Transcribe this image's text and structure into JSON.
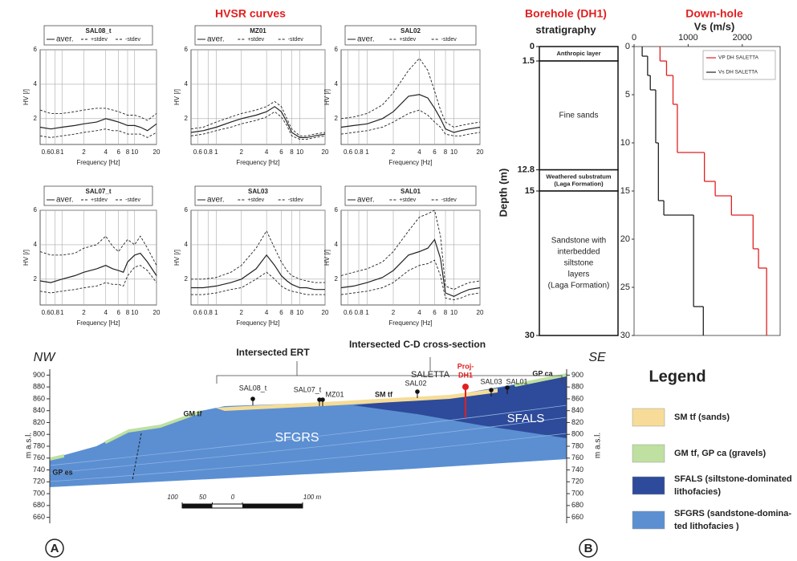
{
  "figure": {
    "heading": "HVSR curves",
    "panel_labels": [
      "A",
      "B"
    ]
  },
  "chart_data": [
    {
      "type": "line",
      "title": "SAL08_t",
      "log_x": true,
      "grid": true,
      "xlabel": "Frequency [Hz]",
      "ylabel": "HV [/]",
      "xlim": [
        0.5,
        20
      ],
      "xticks": [
        0.6,
        0.8,
        1,
        2,
        4,
        6,
        8,
        10,
        20
      ],
      "ylim": [
        0.5,
        6
      ],
      "yticks": [
        2,
        4,
        6
      ],
      "x": [
        0.5,
        0.7,
        1,
        1.5,
        2,
        3,
        4,
        5,
        6,
        7,
        8,
        10,
        12,
        15,
        20
      ],
      "series": [
        {
          "name": "aver.",
          "color": "#222222",
          "style": "solid",
          "values": [
            1.5,
            1.4,
            1.5,
            1.6,
            1.7,
            1.8,
            2.0,
            1.9,
            1.8,
            1.7,
            1.6,
            1.6,
            1.5,
            1.3,
            1.7
          ]
        },
        {
          "name": "+stdev",
          "color": "#222222",
          "style": "dashed",
          "values": [
            2.5,
            2.3,
            2.3,
            2.4,
            2.5,
            2.6,
            2.6,
            2.5,
            2.4,
            2.3,
            2.2,
            2.2,
            2.1,
            1.9,
            2.3
          ]
        },
        {
          "name": "-stdev",
          "color": "#222222",
          "style": "dashed",
          "values": [
            1.0,
            0.9,
            1.0,
            1.1,
            1.2,
            1.3,
            1.4,
            1.3,
            1.3,
            1.2,
            1.1,
            1.1,
            1.1,
            0.9,
            1.2
          ]
        }
      ]
    },
    {
      "type": "line",
      "title": "MZ01",
      "log_x": true,
      "grid": true,
      "xlabel": "Frequency [Hz]",
      "ylabel": "HV [/]",
      "xlim": [
        0.5,
        20
      ],
      "xticks": [
        0.6,
        0.8,
        1,
        2,
        4,
        6,
        8,
        10,
        20
      ],
      "ylim": [
        0.5,
        6
      ],
      "yticks": [
        2,
        4,
        6
      ],
      "x": [
        0.5,
        0.7,
        1,
        1.5,
        2,
        3,
        4,
        5,
        6,
        7,
        8,
        10,
        12,
        15,
        20
      ],
      "series": [
        {
          "name": "aver.",
          "color": "#222222",
          "style": "solid",
          "values": [
            1.2,
            1.3,
            1.5,
            1.8,
            2.0,
            2.2,
            2.4,
            2.7,
            2.4,
            1.8,
            1.2,
            0.9,
            0.9,
            1.0,
            1.1
          ]
        },
        {
          "name": "+stdev",
          "color": "#222222",
          "style": "dashed",
          "values": [
            1.4,
            1.5,
            1.8,
            2.1,
            2.3,
            2.5,
            2.7,
            3.0,
            2.7,
            2.0,
            1.4,
            1.0,
            1.0,
            1.1,
            1.2
          ]
        },
        {
          "name": "-stdev",
          "color": "#222222",
          "style": "dashed",
          "values": [
            1.0,
            1.1,
            1.3,
            1.5,
            1.7,
            1.9,
            2.1,
            2.4,
            2.1,
            1.6,
            1.0,
            0.8,
            0.8,
            0.9,
            1.0
          ]
        }
      ]
    },
    {
      "type": "line",
      "title": "SAL02",
      "log_x": true,
      "grid": true,
      "xlabel": "Frequency [Hz]",
      "ylabel": "HV [/]",
      "xlim": [
        0.5,
        20
      ],
      "xticks": [
        0.6,
        0.8,
        1,
        2,
        4,
        6,
        8,
        10,
        20
      ],
      "ylim": [
        0.5,
        6
      ],
      "yticks": [
        2,
        4,
        6
      ],
      "x": [
        0.5,
        0.7,
        1,
        1.5,
        2,
        3,
        4,
        5,
        6,
        7,
        8,
        10,
        12,
        15,
        20
      ],
      "series": [
        {
          "name": "aver.",
          "color": "#222222",
          "style": "solid",
          "values": [
            1.5,
            1.6,
            1.7,
            2.0,
            2.4,
            3.3,
            3.4,
            3.2,
            2.6,
            2.0,
            1.4,
            1.2,
            1.3,
            1.4,
            1.5
          ]
        },
        {
          "name": "+stdev",
          "color": "#222222",
          "style": "dashed",
          "values": [
            2.0,
            2.1,
            2.3,
            2.8,
            3.5,
            4.8,
            5.5,
            4.8,
            3.6,
            2.5,
            1.8,
            1.5,
            1.6,
            1.7,
            1.8
          ]
        },
        {
          "name": "-stdev",
          "color": "#222222",
          "style": "dashed",
          "values": [
            1.1,
            1.2,
            1.3,
            1.5,
            1.8,
            2.3,
            2.5,
            2.2,
            1.8,
            1.5,
            1.1,
            1.0,
            1.0,
            1.1,
            1.2
          ]
        }
      ]
    },
    {
      "type": "line",
      "title": "SAL07_t",
      "log_x": true,
      "grid": true,
      "xlabel": "Frequency [Hz]",
      "ylabel": "HV [/]",
      "xlim": [
        0.5,
        20
      ],
      "xticks": [
        0.6,
        0.8,
        1,
        2,
        4,
        6,
        8,
        10,
        20
      ],
      "ylim": [
        0.5,
        6
      ],
      "yticks": [
        2,
        4,
        6
      ],
      "x": [
        0.5,
        0.7,
        1,
        1.5,
        2,
        3,
        4,
        5,
        6,
        7,
        8,
        10,
        12,
        15,
        20
      ],
      "series": [
        {
          "name": "aver.",
          "color": "#222222",
          "style": "solid",
          "values": [
            1.9,
            1.8,
            2.0,
            2.2,
            2.4,
            2.6,
            2.8,
            2.6,
            2.5,
            2.4,
            3.0,
            3.4,
            3.5,
            3.0,
            2.2
          ]
        },
        {
          "name": "+stdev",
          "color": "#222222",
          "style": "dashed",
          "values": [
            3.6,
            3.4,
            3.4,
            3.5,
            3.8,
            4.0,
            4.5,
            3.9,
            3.6,
            4.0,
            4.3,
            4.0,
            4.5,
            3.8,
            2.8
          ]
        },
        {
          "name": "-stdev",
          "color": "#222222",
          "style": "dashed",
          "values": [
            1.3,
            1.2,
            1.3,
            1.4,
            1.5,
            1.6,
            1.8,
            1.7,
            1.7,
            1.6,
            2.2,
            2.7,
            2.8,
            2.5,
            1.8
          ]
        }
      ]
    },
    {
      "type": "line",
      "title": "SAL03",
      "log_x": true,
      "grid": true,
      "xlabel": "Frequency [Hz]",
      "ylabel": "HV [/]",
      "xlim": [
        0.5,
        20
      ],
      "xticks": [
        0.6,
        0.8,
        1,
        2,
        4,
        6,
        8,
        10,
        20
      ],
      "ylim": [
        0.5,
        6
      ],
      "yticks": [
        2,
        4,
        6
      ],
      "x": [
        0.5,
        0.7,
        1,
        1.5,
        2,
        3,
        4,
        5,
        6,
        7,
        8,
        10,
        12,
        15,
        20
      ],
      "series": [
        {
          "name": "aver.",
          "color": "#222222",
          "style": "solid",
          "values": [
            1.5,
            1.5,
            1.6,
            1.8,
            2.0,
            2.6,
            3.4,
            2.8,
            2.2,
            1.9,
            1.7,
            1.5,
            1.5,
            1.4,
            1.4
          ]
        },
        {
          "name": "+stdev",
          "color": "#222222",
          "style": "dashed",
          "values": [
            2.0,
            2.0,
            2.1,
            2.4,
            2.8,
            3.8,
            4.8,
            3.8,
            3.0,
            2.5,
            2.2,
            2.0,
            1.9,
            1.8,
            1.8
          ]
        },
        {
          "name": "-stdev",
          "color": "#222222",
          "style": "dashed",
          "values": [
            1.1,
            1.1,
            1.2,
            1.4,
            1.5,
            2.0,
            2.4,
            2.0,
            1.6,
            1.4,
            1.3,
            1.2,
            1.1,
            1.1,
            1.1
          ]
        }
      ]
    },
    {
      "type": "line",
      "title": "SAL01",
      "log_x": true,
      "grid": true,
      "xlabel": "Frequency [Hz]",
      "ylabel": "HV [/]",
      "xlim": [
        0.5,
        20
      ],
      "xticks": [
        0.6,
        0.8,
        1,
        2,
        4,
        6,
        8,
        10,
        20
      ],
      "ylim": [
        0.5,
        6
      ],
      "yticks": [
        2,
        4,
        6
      ],
      "x": [
        0.5,
        0.7,
        1,
        1.5,
        2,
        3,
        4,
        5,
        6,
        7,
        8,
        10,
        12,
        15,
        20
      ],
      "series": [
        {
          "name": "aver.",
          "color": "#222222",
          "style": "solid",
          "values": [
            1.5,
            1.6,
            1.8,
            2.1,
            2.5,
            3.4,
            3.6,
            3.8,
            4.3,
            3.2,
            1.2,
            1.0,
            1.2,
            1.4,
            1.5
          ]
        },
        {
          "name": "+stdev",
          "color": "#222222",
          "style": "dashed",
          "values": [
            2.2,
            2.4,
            2.6,
            3.0,
            3.6,
            4.8,
            5.6,
            5.8,
            6.0,
            4.5,
            1.6,
            1.4,
            1.6,
            1.8,
            1.9
          ]
        },
        {
          "name": "-stdev",
          "color": "#222222",
          "style": "dashed",
          "values": [
            1.1,
            1.2,
            1.3,
            1.5,
            1.8,
            2.5,
            2.8,
            2.9,
            3.1,
            2.2,
            0.9,
            0.8,
            0.9,
            1.1,
            1.2
          ]
        }
      ]
    },
    {
      "type": "strat",
      "title": "Borehole (DH1)",
      "subtitle": "stratigraphy",
      "ylabel": "Depth (m)",
      "ylim": [
        0,
        30
      ],
      "yticks": [
        0,
        1.5,
        12.8,
        15,
        30
      ],
      "layers": [
        {
          "top": 0,
          "bottom": 1.5,
          "label": [
            "Anthropic layer"
          ]
        },
        {
          "top": 1.5,
          "bottom": 12.8,
          "label": [
            "Fine sands"
          ]
        },
        {
          "top": 12.8,
          "bottom": 15,
          "label": [
            "Weathered substratum",
            "(Laga Formation)"
          ]
        },
        {
          "top": 15,
          "bottom": 30,
          "label": [
            "Sandstone with",
            "interbedded",
            "siltstone",
            "layers",
            "(Laga Formation)"
          ]
        }
      ]
    },
    {
      "type": "step",
      "title": "Down-hole",
      "subtitle": "Vs (m/s)",
      "xlim": [
        0,
        2700
      ],
      "xticks": [
        0,
        1000,
        2000
      ],
      "ylim": [
        0,
        30
      ],
      "yticks": [
        0,
        5,
        10,
        15,
        20,
        25,
        30
      ],
      "series": [
        {
          "name": "VP DH SALETTA",
          "color": "#e02020",
          "values": [
            480,
            600,
            720,
            800,
            1300,
            1500,
            1800,
            2200,
            2300,
            2450
          ],
          "depths": [
            0,
            1.5,
            3,
            6,
            11,
            14,
            15.5,
            17.5,
            21,
            23,
            30
          ]
        },
        {
          "name": "Vs DH SALETTA",
          "color": "#222222",
          "values": [
            150,
            250,
            300,
            400,
            450,
            550,
            1100,
            1280
          ],
          "depths": [
            0,
            1,
            3,
            4.5,
            10,
            16,
            17.5,
            27,
            30
          ]
        }
      ]
    },
    {
      "type": "section",
      "ylabel": "m a.s.l.",
      "ylim": [
        650,
        910
      ],
      "yticks": [
        660,
        680,
        700,
        720,
        740,
        760,
        780,
        800,
        820,
        840,
        860,
        880,
        900
      ],
      "direction_left": "NW",
      "direction_right": "SE",
      "brackets": [
        "Intersected ERT",
        "Intersected C-D cross-section",
        "SALETTA"
      ],
      "sites": [
        {
          "label": [
            "SAL08_t"
          ]
        },
        {
          "label": [
            "SAL07_t"
          ]
        },
        {
          "label": [
            "MZ01"
          ]
        },
        {
          "label": [
            "SAL02"
          ]
        },
        {
          "label": [
            "Proj-",
            "DH1"
          ],
          "color": "#e02020"
        },
        {
          "label": [
            "SAL03"
          ]
        },
        {
          "label": [
            "SAL01"
          ]
        }
      ],
      "units": [
        "SFGRS",
        "SFALS",
        "GM tf",
        "GP es",
        "GP ca",
        "SM tf"
      ],
      "scale_ticks": [
        {
          "value": -100,
          "label": "100"
        },
        {
          "value": -50,
          "label": "50"
        },
        0,
        {
          "value": 100,
          "label": "100 m"
        }
      ],
      "legend": {
        "title": "Legend",
        "items": [
          {
            "label": [
              "SM tf (sands)"
            ],
            "color": "#f6dc98"
          },
          {
            "label": [
              "GM tf, GP ca (gravels)"
            ],
            "color": "#bfe0a0"
          },
          {
            "label": [
              "SFALS (siltstone-dominated",
              "lithofacies)"
            ],
            "color": "#2e4a9a"
          },
          {
            "label": [
              "SFGRS (sandstone-domina-",
              "ted lithofacies )"
            ],
            "color": "#5b8fd2"
          }
        ]
      }
    }
  ]
}
